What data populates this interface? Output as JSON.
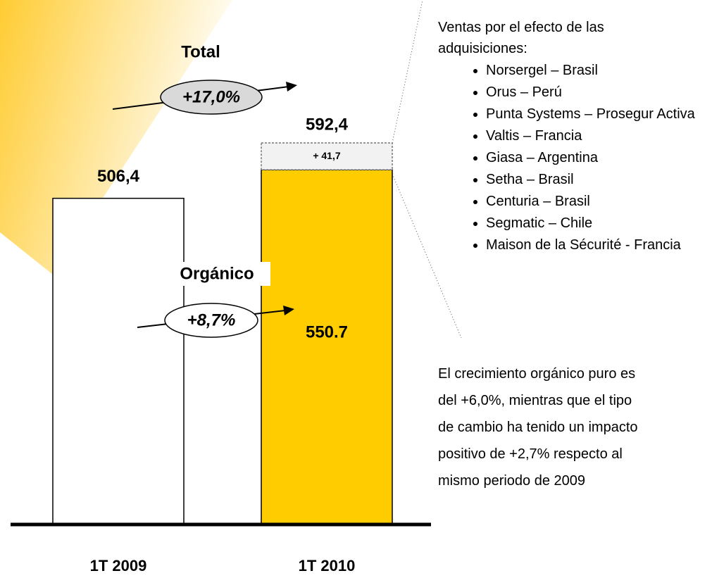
{
  "chart_data": {
    "type": "bar",
    "stacked": true,
    "categories": [
      "1T 2009",
      "1T 2010"
    ],
    "series": [
      {
        "colors": [
          "#ffffff",
          "#ffcc00"
        ],
        "values": [
          506.4,
          550.7
        ],
        "value_labels": [
          "506,4",
          "550.7"
        ]
      },
      {
        "color": "#f2f2f2",
        "values": [
          null,
          41.7
        ],
        "value_labels": [
          null,
          "+ 41,7"
        ]
      }
    ],
    "total_label": "592,4",
    "annotations": {
      "total": {
        "label": "Total",
        "change": "+17,0%"
      },
      "organic": {
        "label": "Orgánico",
        "change": "+8,7%"
      }
    },
    "side_note": {
      "heading": "Ventas por el efecto de las adquisiciones:",
      "items": [
        "Norsergel – Brasil",
        "Orus – Perú",
        "Punta Systems – Prosegur Activa",
        "Valtis – Francia",
        "Giasa – Argentina",
        "Setha – Brasil",
        "Centuria – Brasil",
        "Segmatic – Chile",
        "Maison de la Sécurité - Francia"
      ],
      "paragraph": "El crecimiento orgánico puro es del +6,0%, mientras que el tipo de cambio ha tenido un impacto positivo de +2,7% respecto al mismo periodo de 2009"
    }
  }
}
